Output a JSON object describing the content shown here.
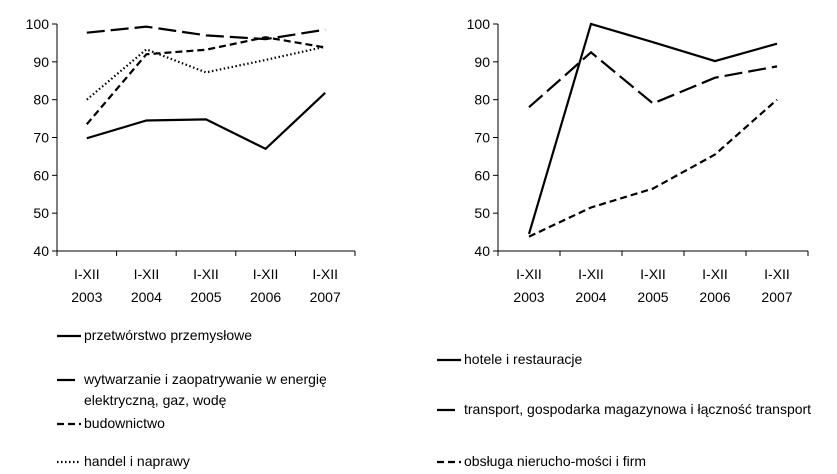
{
  "chart_data": [
    {
      "type": "line",
      "categories": [
        "I-XII 2003",
        "I-XII 2004",
        "I-XII 2005",
        "I-XII 2006",
        "I-XII 2007"
      ],
      "ylim": [
        40,
        100
      ],
      "yticks": [
        40,
        50,
        60,
        70,
        80,
        90,
        100
      ],
      "series": [
        {
          "name": "przetwórstwo przemysłowe",
          "color": "#000000",
          "dash": "solid",
          "values": [
            69.8,
            74.5,
            74.8,
            67,
            81.8
          ]
        },
        {
          "name": "wytwarzanie i zaopatrywanie w energię elektryczną, gaz, wodę",
          "color": "#000000",
          "dash": "longdash",
          "values": [
            97.7,
            99.3,
            97,
            96,
            98.5
          ]
        },
        {
          "name": "budownictwo",
          "color": "#000000",
          "dash": "dash",
          "values": [
            73.5,
            92,
            93.2,
            96.5,
            93.8
          ]
        },
        {
          "name": "handel i naprawy",
          "color": "#000000",
          "dash": "dot",
          "values": [
            80,
            93.3,
            87.2,
            90.5,
            94
          ]
        }
      ]
    },
    {
      "type": "line",
      "categories": [
        "I-XII 2003",
        "I-XII 2004",
        "I-XII 2005",
        "I-XII 2006",
        "I-XII 2007"
      ],
      "ylim": [
        40,
        100
      ],
      "yticks": [
        40,
        50,
        60,
        70,
        80,
        90,
        100
      ],
      "series": [
        {
          "name": "hotele i restauracje",
          "color": "#000000",
          "dash": "solid",
          "values": [
            44.5,
            100,
            95.2,
            90.2,
            94.8
          ]
        },
        {
          "name": "transport, gospodarka magazynowa i łączność transport",
          "color": "#000000",
          "dash": "longdash",
          "values": [
            78,
            92.5,
            79,
            85.8,
            88.8
          ]
        },
        {
          "name": "obsługa nierucho-mości i firm",
          "color": "#000000",
          "dash": "dash",
          "values": [
            43.8,
            51.5,
            56.5,
            65.5,
            80
          ]
        }
      ]
    }
  ]
}
